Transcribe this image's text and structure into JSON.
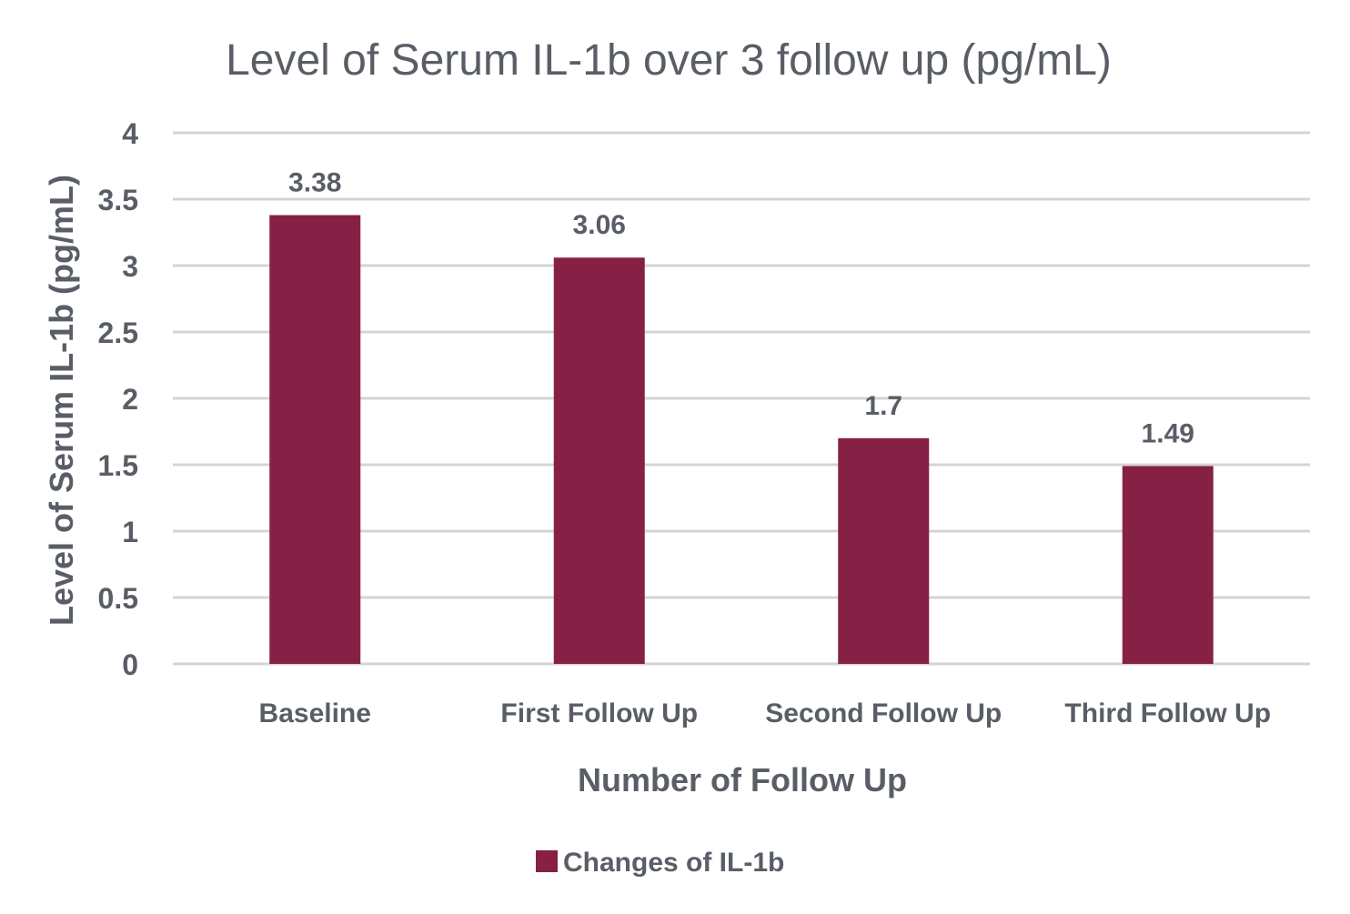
{
  "chart_data": {
    "type": "bar",
    "title": "Level of Serum IL-1b over 3 follow up (pg/mL)",
    "xlabel": "Number of Follow Up",
    "ylabel": "Level of Serum IL-1b (pg/mL)",
    "categories": [
      "Baseline",
      "First Follow Up",
      "Second Follow Up",
      "Third Follow Up"
    ],
    "series": [
      {
        "name": "Changes of IL-1b",
        "values": [
          3.38,
          3.06,
          1.7,
          1.49
        ],
        "data_labels": [
          "3.38",
          "3.06",
          "1.7",
          "1.49"
        ],
        "color": "#862145"
      }
    ],
    "ylim": [
      0,
      4
    ],
    "yticks": [
      "0",
      "0.5",
      "1",
      "1.5",
      "2",
      "2.5",
      "3",
      "3.5",
      "4"
    ],
    "ytick_values": [
      0,
      0.5,
      1,
      1.5,
      2,
      2.5,
      3,
      3.5,
      4
    ],
    "grid": true,
    "legend_position": "bottom",
    "text_color": "#595e66",
    "grid_color": "#d4d4d4"
  }
}
